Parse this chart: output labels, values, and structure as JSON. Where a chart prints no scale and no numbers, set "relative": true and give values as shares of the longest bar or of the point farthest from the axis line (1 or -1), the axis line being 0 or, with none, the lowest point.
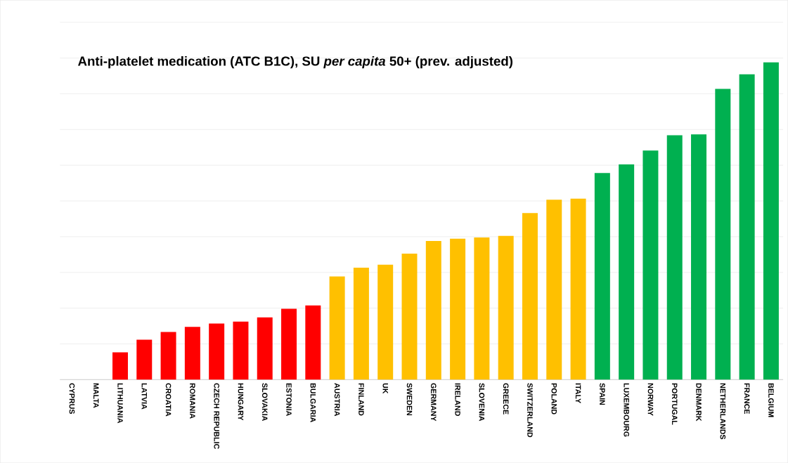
{
  "chart_data": {
    "type": "bar",
    "title": "Anti-platelet medication (ATC B1C), SU *per capita* 50+ (prev. adjusted)",
    "relative": true,
    "grid": "y",
    "categories": [
      "CYPRUS",
      "MALTA",
      "LITHUANIA",
      "LATVIA",
      "CROATIA",
      "ROMANIA",
      "CZECH REPUBLIC",
      "HUNGARY",
      "SLOVAKIA",
      "ESTONIA",
      "BULGARIA",
      "AUSTRIA",
      "FINLAND",
      "UK",
      "SWEDEN",
      "GERMANY",
      "IRELAND",
      "SLOVENIA",
      "GREECE",
      "SWITZERLAND",
      "POLAND",
      "ITALY",
      "SPAIN",
      "LUXEMBOURG",
      "NORWAY",
      "PORTUGAL",
      "DENMARK",
      "NETHERLANDS",
      "FRANCE",
      "BELGIUM"
    ],
    "values": [
      0,
      0,
      0.086,
      0.126,
      0.15,
      0.166,
      0.177,
      0.183,
      0.196,
      0.223,
      0.234,
      0.325,
      0.353,
      0.362,
      0.397,
      0.437,
      0.444,
      0.448,
      0.453,
      0.525,
      0.567,
      0.57,
      0.651,
      0.678,
      0.722,
      0.77,
      0.773,
      0.916,
      0.962,
      1
    ],
    "colors": [
      "#ff0000",
      "#ff0000",
      "#ff0000",
      "#ff0000",
      "#ff0000",
      "#ff0000",
      "#ff0000",
      "#ff0000",
      "#ff0000",
      "#ff0000",
      "#ff0000",
      "#ffc000",
      "#ffc000",
      "#ffc000",
      "#ffc000",
      "#ffc000",
      "#ffc000",
      "#ffc000",
      "#ffc000",
      "#ffc000",
      "#ffc000",
      "#ffc000",
      "#00b050",
      "#00b050",
      "#00b050",
      "#00b050",
      "#00b050",
      "#00b050",
      "#00b050",
      "#00b050"
    ]
  }
}
